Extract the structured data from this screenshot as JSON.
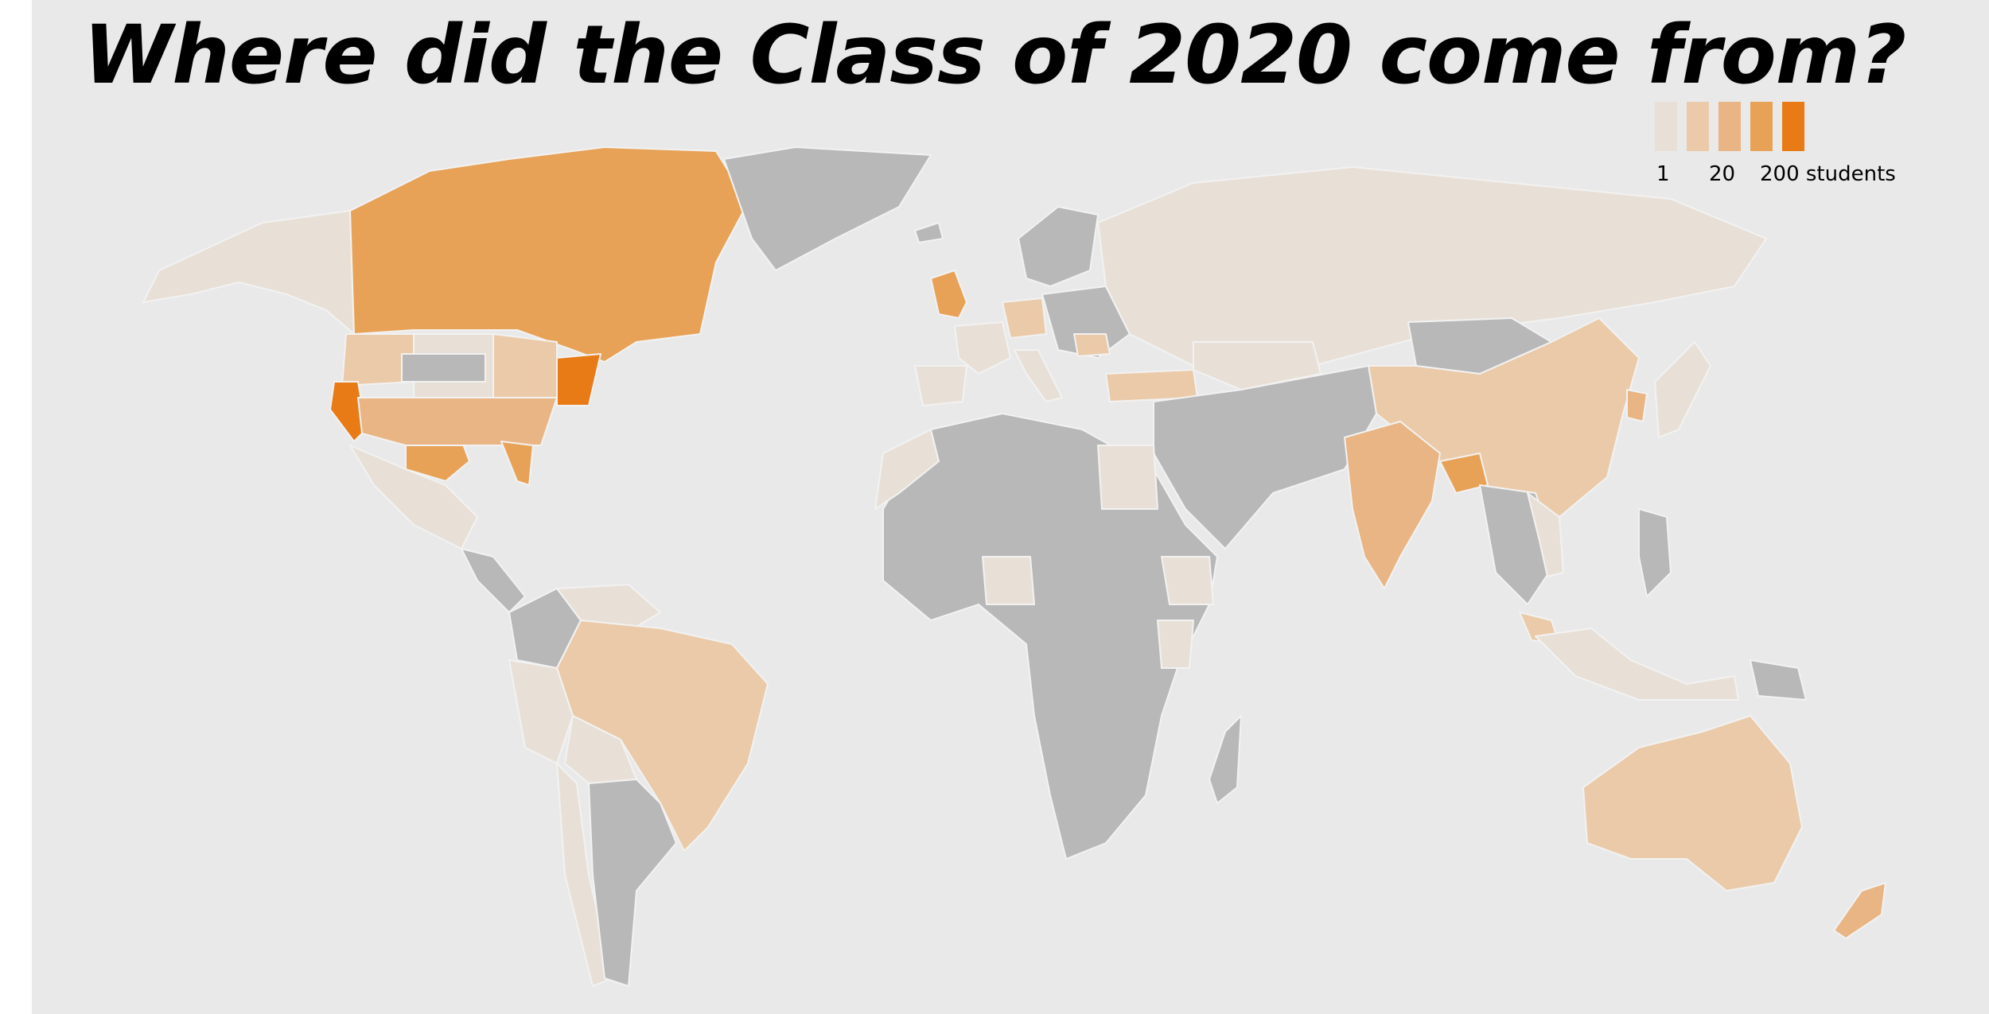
{
  "title": "Where did the Class of 2020 come from?",
  "colors": {
    "background": "#e9e9e9",
    "no_data": "#b8b8b8",
    "scale": [
      "#e8e0d7",
      "#ebcaa9",
      "#e9b584",
      "#e8a257",
      "#e87b16"
    ]
  },
  "legend": {
    "labels": [
      "1",
      "20",
      "200 students"
    ]
  },
  "regions": [
    {
      "name": "Alaska",
      "level": 0
    },
    {
      "name": "Canada",
      "level": 3
    },
    {
      "name": "Greenland",
      "level": -1
    },
    {
      "name": "United States (Northwest)",
      "level": 1
    },
    {
      "name": "United States (Mountain)",
      "level": 0
    },
    {
      "name": "United States (Plains)",
      "level": -1
    },
    {
      "name": "United States (Midwest)",
      "level": 1
    },
    {
      "name": "California",
      "level": 4
    },
    {
      "name": "Texas",
      "level": 3
    },
    {
      "name": "Florida",
      "level": 3
    },
    {
      "name": "United States (Northeast)",
      "level": 4
    },
    {
      "name": "United States (Southeast)",
      "level": 2
    },
    {
      "name": "Mexico",
      "level": 0
    },
    {
      "name": "Central America",
      "level": -1
    },
    {
      "name": "Colombia",
      "level": -1
    },
    {
      "name": "Venezuela",
      "level": 0
    },
    {
      "name": "Peru",
      "level": 0
    },
    {
      "name": "Brazil",
      "level": 1
    },
    {
      "name": "Bolivia",
      "level": 0
    },
    {
      "name": "Chile",
      "level": 0
    },
    {
      "name": "Argentina",
      "level": -1
    },
    {
      "name": "United Kingdom",
      "level": 3
    },
    {
      "name": "France",
      "level": 0
    },
    {
      "name": "Spain",
      "level": 0
    },
    {
      "name": "Germany",
      "level": 1
    },
    {
      "name": "Italy",
      "level": 0
    },
    {
      "name": "Scandinavia",
      "level": -1
    },
    {
      "name": "Eastern Europe",
      "level": -1
    },
    {
      "name": "Romania",
      "level": 1
    },
    {
      "name": "Turkey",
      "level": 1
    },
    {
      "name": "Russia",
      "level": 0
    },
    {
      "name": "Kazakhstan",
      "level": 0
    },
    {
      "name": "Mongolia",
      "level": -1
    },
    {
      "name": "China",
      "level": 1
    },
    {
      "name": "South Korea",
      "level": 2
    },
    {
      "name": "Japan",
      "level": 0
    },
    {
      "name": "Middle East",
      "level": -1
    },
    {
      "name": "India",
      "level": 2
    },
    {
      "name": "Bangladesh",
      "level": 3
    },
    {
      "name": "Southeast Asia",
      "level": -1
    },
    {
      "name": "Vietnam",
      "level": 0
    },
    {
      "name": "Malaysia",
      "level": 1
    },
    {
      "name": "Indonesia",
      "level": 0
    },
    {
      "name": "Philippines",
      "level": -1
    },
    {
      "name": "Papua New Guinea",
      "level": -1
    },
    {
      "name": "Africa",
      "level": -1
    },
    {
      "name": "Egypt",
      "level": 0
    },
    {
      "name": "Morocco",
      "level": 0
    },
    {
      "name": "Nigeria",
      "level": 0
    },
    {
      "name": "Ethiopia",
      "level": 0
    },
    {
      "name": "Kenya",
      "level": 0
    },
    {
      "name": "Madagascar",
      "level": -1
    },
    {
      "name": "Australia",
      "level": 1
    },
    {
      "name": "New Zealand",
      "level": 2
    }
  ]
}
